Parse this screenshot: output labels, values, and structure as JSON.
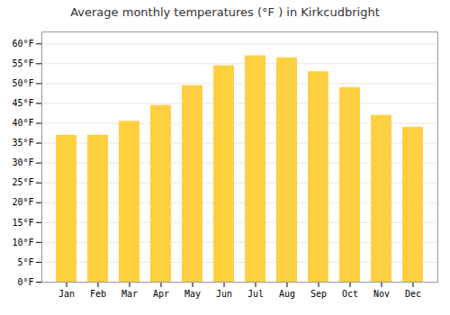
{
  "chart_data": {
    "type": "bar",
    "title": "Average monthly temperatures (°F ) in Kirkcudbright",
    "categories": [
      "Jan",
      "Feb",
      "Mar",
      "Apr",
      "May",
      "Jun",
      "Jul",
      "Aug",
      "Sep",
      "Oct",
      "Nov",
      "Dec"
    ],
    "values": [
      37,
      37,
      40.5,
      44.5,
      49.5,
      54.5,
      57,
      56.5,
      53,
      49,
      42,
      39
    ],
    "color": "#FFD040",
    "ylim": [
      0,
      63
    ],
    "yticks": [
      {
        "value": 0,
        "label": "0°F"
      },
      {
        "value": 5,
        "label": "5°F"
      },
      {
        "value": 10,
        "label": "10°F"
      },
      {
        "value": 15,
        "label": "15°F"
      },
      {
        "value": 20,
        "label": "20°F"
      },
      {
        "value": 25,
        "label": "25°F"
      },
      {
        "value": 30,
        "label": "30°F"
      },
      {
        "value": 35,
        "label": "35°F"
      },
      {
        "value": 40,
        "label": "40°F"
      },
      {
        "value": 45,
        "label": "45°F"
      },
      {
        "value": 50,
        "label": "50°F"
      },
      {
        "value": 55,
        "label": "55°F"
      },
      {
        "value": 60,
        "label": "60°F"
      }
    ],
    "grid": true
  }
}
